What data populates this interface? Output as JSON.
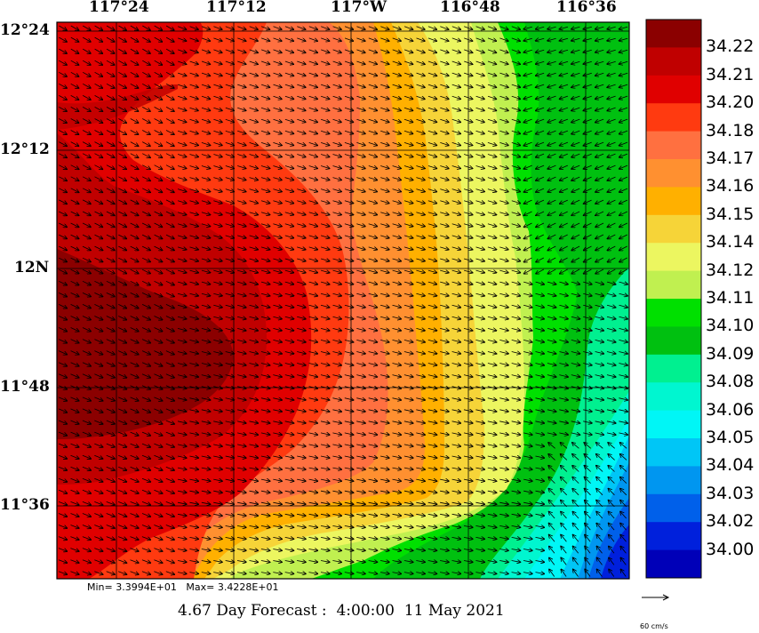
{
  "axes": {
    "lon_labels": [
      "117°24",
      "117°12",
      "117°W",
      "116°48",
      "116°36"
    ],
    "lat_labels": [
      "12°24",
      "12°12",
      "12N",
      "11°48",
      "11°36"
    ]
  },
  "colorbar": {
    "labels": [
      "34.22",
      "34.21",
      "34.20",
      "34.18",
      "34.17",
      "34.16",
      "34.15",
      "34.14",
      "34.12",
      "34.11",
      "34.10",
      "34.09",
      "34.08",
      "34.06",
      "34.05",
      "34.04",
      "34.03",
      "34.02",
      "34.00"
    ],
    "colors": [
      "#8b0000",
      "#c00000",
      "#e00000",
      "#ff3a10",
      "#ff7040",
      "#ff9030",
      "#ffb000",
      "#f6d438",
      "#ecf660",
      "#c0f050",
      "#00e000",
      "#00c010",
      "#00f090",
      "#00f6d0",
      "#00f6f6",
      "#00c6f6",
      "#0096f0",
      "#0060ea",
      "#0020dc",
      "#0000b8"
    ]
  },
  "stats": {
    "min_max": "Min= 3.3994E+01   Max= 3.4228E+01"
  },
  "title": {
    "forecast": "4.67 Day Forecast :  4:00:00  11 May 2021"
  },
  "vector_scale": {
    "label": "60 cm/s"
  }
}
